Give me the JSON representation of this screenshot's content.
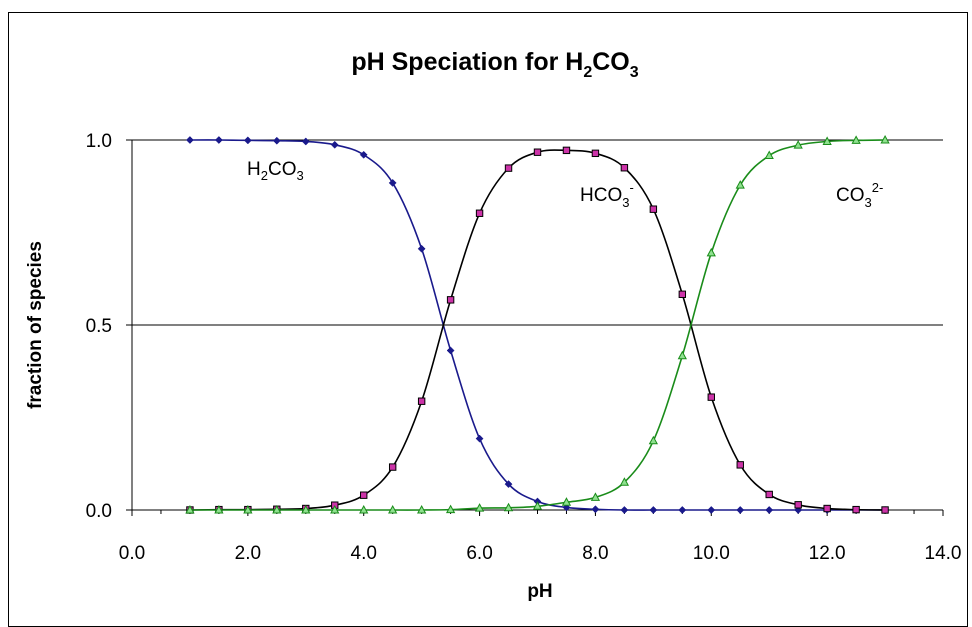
{
  "chart_data": {
    "type": "line",
    "title": {
      "main": "pH Speciation for H",
      "sub1": "2",
      "mid": "CO",
      "sub2": "3"
    },
    "xlabel": "pH",
    "ylabel": "fraction of species",
    "xlim": [
      0,
      14
    ],
    "ylim": [
      0,
      1
    ],
    "x_ticks": [
      {
        "value": 0,
        "label": "0.0"
      },
      {
        "value": 2,
        "label": "2.0"
      },
      {
        "value": 4,
        "label": "4.0"
      },
      {
        "value": 6,
        "label": "6.0"
      },
      {
        "value": 8,
        "label": "8.0"
      },
      {
        "value": 10,
        "label": "10.0"
      },
      {
        "value": 12,
        "label": "12.0"
      },
      {
        "value": 14,
        "label": "14.0"
      }
    ],
    "y_ticks": [
      {
        "value": 0,
        "label": "0.0"
      },
      {
        "value": 0.5,
        "label": "0.5"
      },
      {
        "value": 1,
        "label": "1.0"
      }
    ],
    "gridlines_y": [
      0.5,
      1.0
    ],
    "x": [
      1,
      1.5,
      2,
      2.5,
      3,
      3.5,
      4,
      4.5,
      5,
      5.5,
      6,
      6.5,
      7,
      7.5,
      8,
      8.5,
      9,
      9.5,
      10,
      10.5,
      11,
      11.5,
      12,
      12.5,
      13
    ],
    "series": [
      {
        "color": "#1a1a8c",
        "marker": "diamond",
        "values": [
          1.0,
          1.0,
          0.999,
          0.998,
          0.996,
          0.987,
          0.96,
          0.884,
          0.706,
          0.431,
          0.193,
          0.07,
          0.023,
          0.007,
          0.002,
          0.0,
          0.0,
          0.0,
          0.0,
          0.0,
          0.0,
          0.0,
          0.0,
          0.0,
          0.0
        ]
      },
      {
        "color": "#000000",
        "marker": "square",
        "marker_fill": "#cc33a8",
        "values": [
          0.0,
          0.001,
          0.001,
          0.002,
          0.004,
          0.013,
          0.04,
          0.116,
          0.294,
          0.568,
          0.802,
          0.924,
          0.967,
          0.972,
          0.964,
          0.925,
          0.813,
          0.583,
          0.305,
          0.122,
          0.042,
          0.014,
          0.004,
          0.001,
          0.0
        ]
      },
      {
        "color": "#1a8c1a",
        "marker": "triangle",
        "marker_fill": "#8fe08f",
        "values": [
          0.0,
          0.0,
          0.0,
          0.0,
          0.0,
          0.0,
          0.0,
          0.0,
          0.0,
          0.001,
          0.005,
          0.006,
          0.01,
          0.021,
          0.034,
          0.075,
          0.187,
          0.417,
          0.695,
          0.878,
          0.958,
          0.986,
          0.996,
          0.999,
          1.0
        ]
      }
    ],
    "annotations": {
      "h2co3": {
        "base": "H",
        "s1": "2",
        "mid": "CO",
        "s2": "3"
      },
      "hco3": {
        "base": "HCO",
        "sub": "3",
        "sup": "-"
      },
      "co3": {
        "base": "CO",
        "sub": "3",
        "sup": "2-"
      }
    }
  }
}
